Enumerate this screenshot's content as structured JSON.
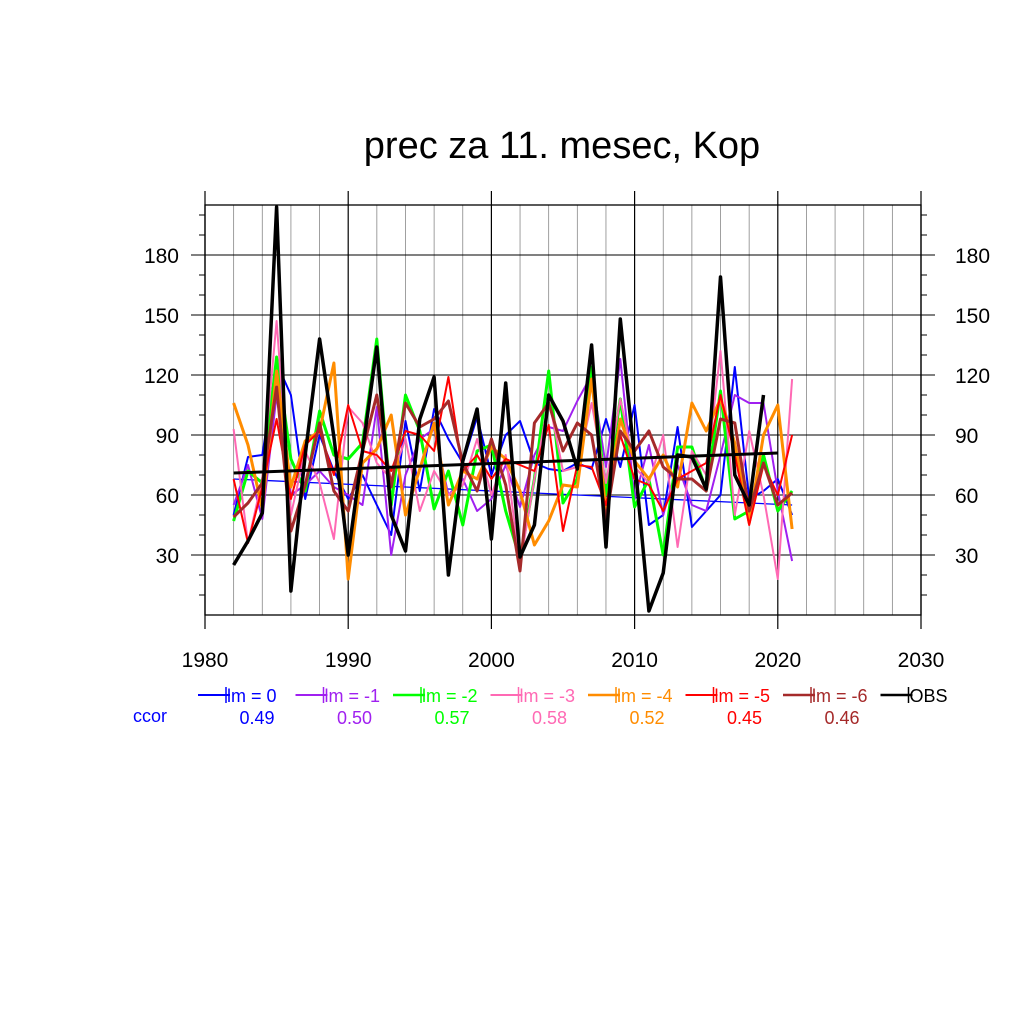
{
  "chart_data": {
    "type": "line",
    "title": "prec za 11. mesec, Kop",
    "xlabel": "",
    "ylabel": "",
    "xlim": [
      1980,
      2030
    ],
    "ylim": [
      0,
      205
    ],
    "x_ticks": [
      1980,
      1990,
      2000,
      2010,
      2020,
      2030
    ],
    "y_ticks": [
      30,
      60,
      90,
      120,
      150,
      180
    ],
    "grid": true,
    "legend_position": "bottom",
    "ccor_label": "ccor",
    "x": [
      1982,
      1983,
      1984,
      1985,
      1986,
      1987,
      1988,
      1989,
      1990,
      1991,
      1992,
      1993,
      1994,
      1995,
      1996,
      1997,
      1998,
      1999,
      2000,
      2001,
      2002,
      2003,
      2004,
      2005,
      2006,
      2007,
      2008,
      2009,
      2010,
      2011,
      2012,
      2013,
      2014,
      2015,
      2016,
      2017,
      2018,
      2019,
      2020,
      2021
    ],
    "series": [
      {
        "name": "lm = 0",
        "color": "#0000ff",
        "ccor": "0.49",
        "width": 2,
        "values": [
          50,
          79,
          80,
          126,
          110,
          58,
          90,
          72,
          58,
          70,
          55,
          40,
          97,
          62,
          103,
          88,
          76,
          99,
          70,
          90,
          97,
          76,
          73,
          72,
          76,
          73,
          98,
          74,
          105,
          45,
          50,
          94,
          44,
          52,
          60,
          124,
          58,
          62,
          68,
          50
        ],
        "trend": [
          68,
          55
        ]
      },
      {
        "name": "lm = -1",
        "color": "#a020f0",
        "ccor": "0.50",
        "width": 2,
        "values": [
          55,
          75,
          48,
          110,
          60,
          65,
          72,
          64,
          60,
          55,
          104,
          30,
          70,
          88,
          93,
          60,
          68,
          52,
          58,
          75,
          54,
          80,
          94,
          92,
          107,
          120,
          74,
          128,
          58,
          85,
          50,
          75,
          55,
          52,
          80,
          110,
          106,
          106,
          62,
          27
        ]
      },
      {
        "name": "lm = -2",
        "color": "#00ff00",
        "ccor": "0.57",
        "width": 3,
        "values": [
          47,
          72,
          66,
          129,
          78,
          62,
          102,
          80,
          78,
          86,
          138,
          55,
          110,
          92,
          53,
          72,
          45,
          82,
          85,
          52,
          28,
          68,
          122,
          56,
          68,
          124,
          60,
          108,
          54,
          68,
          30,
          84,
          84,
          62,
          112,
          48,
          52,
          80,
          52,
          62
        ]
      },
      {
        "name": "lm = -3",
        "color": "#ff69b4",
        "ccor": "0.58",
        "width": 2,
        "values": [
          93,
          36,
          68,
          147,
          50,
          82,
          66,
          38,
          104,
          96,
          76,
          68,
          88,
          52,
          72,
          60,
          65,
          88,
          60,
          80,
          25,
          68,
          108,
          72,
          74,
          106,
          66,
          108,
          74,
          66,
          90,
          34,
          82,
          70,
          132,
          50,
          92,
          60,
          18,
          118
        ]
      },
      {
        "name": "lm = -4",
        "color": "#ff8c00",
        "ccor": "0.52",
        "width": 3,
        "values": [
          106,
          85,
          53,
          122,
          64,
          87,
          92,
          126,
          18,
          76,
          83,
          100,
          50,
          73,
          96,
          55,
          72,
          68,
          84,
          78,
          62,
          35,
          47,
          65,
          64,
          118,
          52,
          98,
          77,
          68,
          80,
          64,
          106,
          92,
          108,
          86,
          46,
          90,
          105,
          43
        ]
      },
      {
        "name": "lm = -5",
        "color": "#ff0000",
        "ccor": "0.45",
        "width": 2,
        "values": [
          68,
          36,
          64,
          98,
          58,
          85,
          92,
          70,
          105,
          82,
          80,
          72,
          92,
          90,
          82,
          119,
          72,
          80,
          68,
          78,
          75,
          72,
          95,
          42,
          75,
          74,
          55,
          90,
          68,
          65,
          52,
          68,
          72,
          76,
          110,
          80,
          45,
          75,
          60,
          90
        ]
      },
      {
        "name": "lm = -6",
        "color": "#a52a2a",
        "ccor": "0.46",
        "width": 3,
        "values": [
          49,
          56,
          66,
          114,
          42,
          65,
          96,
          62,
          52,
          82,
          110,
          64,
          106,
          94,
          98,
          107,
          76,
          62,
          88,
          65,
          22,
          96,
          106,
          82,
          96,
          90,
          48,
          92,
          82,
          92,
          74,
          68,
          68,
          62,
          98,
          96,
          52,
          76,
          55,
          61
        ]
      },
      {
        "name": "OBS",
        "color": "#000000",
        "ccor": "",
        "width": 3.5,
        "values": [
          25,
          37,
          51,
          204,
          12,
          80,
          138,
          89,
          30,
          82,
          134,
          50,
          32,
          98,
          119,
          20,
          77,
          103,
          38,
          116,
          29,
          45,
          110,
          97,
          73,
          135,
          34,
          148,
          78,
          2,
          21,
          80,
          79,
          63,
          169,
          70,
          55,
          110,
          null,
          null
        ],
        "trend": [
          71,
          81
        ]
      }
    ]
  }
}
